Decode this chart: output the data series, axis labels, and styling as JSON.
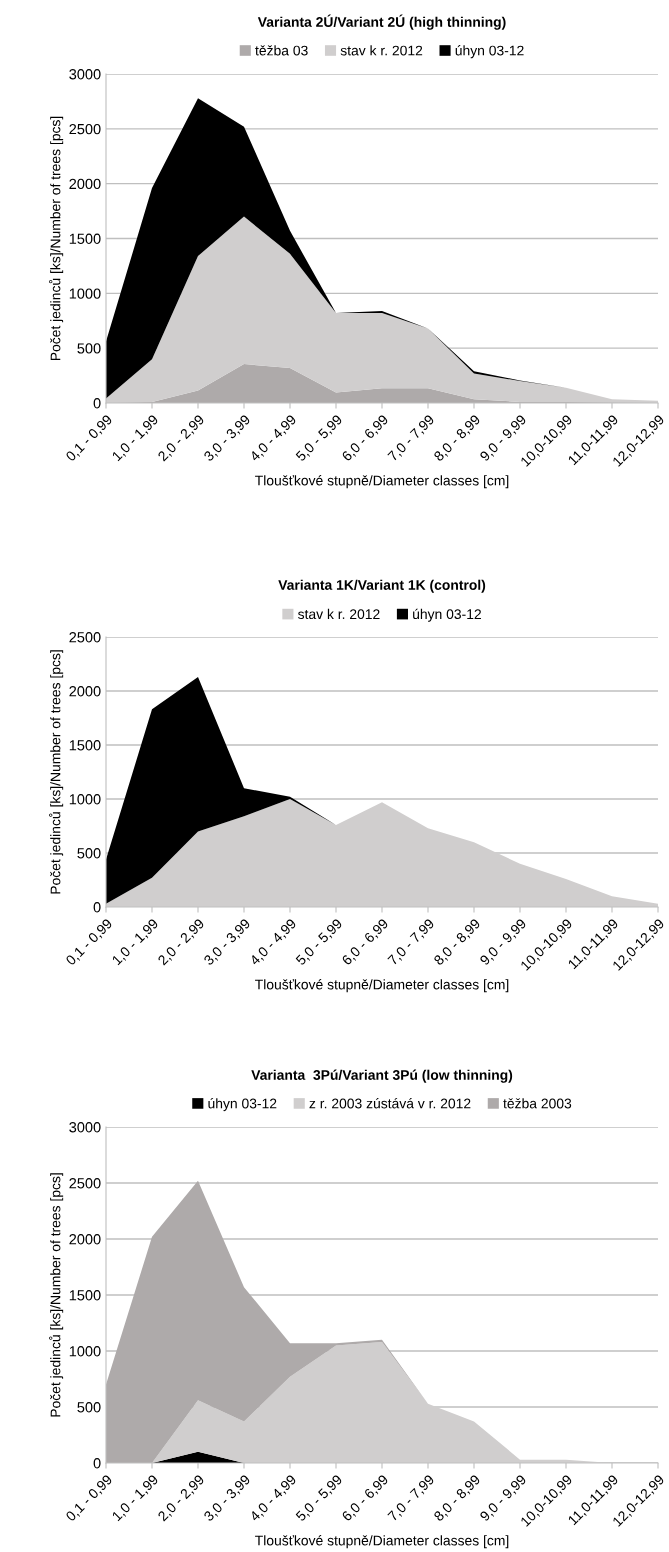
{
  "chart_data": [
    {
      "type": "area",
      "stacked": true,
      "title": "Varianta 2Ú/Variant 2Ú (high thinning)",
      "xlabel": "Tloušťkové stupně/Diameter classes [cm]",
      "ylabel": "Počet jedinců [ks]/Number of trees [pcs]",
      "categories": [
        "0,1 - 0,99",
        "1,0 - 1,99",
        "2,0 - 2,99",
        "3,0 - 3,99",
        "4,0 - 4,99",
        "5,0 - 5,99",
        "6,0 - 6,99",
        "7,0 - 7,99",
        "8,0 - 8,99",
        "9,0 - 9,99",
        "10,0-10,99",
        "11,0-11,99",
        "12,0-12,99"
      ],
      "series": [
        {
          "name": "těžba 03",
          "color": "#aeaaaa",
          "values": [
            0,
            10,
            115,
            355,
            320,
            95,
            135,
            135,
            35,
            10,
            10,
            5,
            0
          ]
        },
        {
          "name": "stav k r. 2012",
          "color": "#d0cece",
          "values": [
            40,
            390,
            1225,
            1345,
            1040,
            725,
            685,
            545,
            235,
            190,
            130,
            30,
            20
          ]
        },
        {
          "name": "úhyn 03-12",
          "color": "#000000",
          "values": [
            520,
            1560,
            1440,
            820,
            210,
            0,
            20,
            0,
            20,
            5,
            0,
            0,
            0
          ]
        }
      ],
      "ylim": [
        0,
        3000
      ],
      "yticks": [
        0,
        500,
        1000,
        1500,
        2000,
        2500,
        3000
      ],
      "grid": "y",
      "legend": "top"
    },
    {
      "type": "area",
      "stacked": true,
      "title": "Varianta 1K/Variant 1K (control)",
      "xlabel": "Tloušťkové stupně/Diameter classes [cm]",
      "ylabel": "Počet jedinců [ks]/Number of trees [pcs]",
      "categories": [
        "0,1 - 0,99",
        "1,0 - 1,99",
        "2,0 - 2,99",
        "3,0 - 3,99",
        "4,0 - 4,99",
        "5,0 - 5,99",
        "6,0 - 6,99",
        "7,0 - 7,99",
        "8,0 - 8,99",
        "9,0 - 9,99",
        "10,0-10,99",
        "11,0-11,99",
        "12,0-12,99"
      ],
      "series": [
        {
          "name": "stav k r. 2012",
          "color": "#d0cece",
          "values": [
            30,
            270,
            700,
            840,
            1000,
            760,
            970,
            730,
            600,
            400,
            260,
            100,
            30
          ]
        },
        {
          "name": "úhyn 03-12",
          "color": "#000000",
          "values": [
            410,
            1560,
            1430,
            260,
            20,
            0,
            0,
            0,
            0,
            0,
            0,
            0,
            0
          ]
        }
      ],
      "ylim": [
        0,
        2500
      ],
      "yticks": [
        0,
        500,
        1000,
        1500,
        2000,
        2500
      ],
      "grid": "y",
      "legend": "top"
    },
    {
      "type": "area",
      "stacked": true,
      "title": "Varianta  3Pú/Variant 3Pú (low thinning)",
      "xlabel": "Tloušťkové stupně/Diameter classes [cm]",
      "ylabel": "Počet jedinců [ks]/Number of trees [pcs]",
      "categories": [
        "0,1 - 0,99",
        "1,0 - 1,99",
        "2,0 - 2,99",
        "3,0 - 3,99",
        "4,0 - 4,99",
        "5,0 - 5,99",
        "6,0 - 6,99",
        "7,0 - 7,99",
        "8,0 - 8,99",
        "9,0 - 9,99",
        "10,0-10,99",
        "11,0-11,99",
        "12,0-12,99"
      ],
      "series": [
        {
          "name": "úhyn 03-12",
          "color": "#000000",
          "values": [
            0,
            0,
            100,
            0,
            0,
            0,
            0,
            0,
            0,
            0,
            0,
            0,
            0
          ]
        },
        {
          "name": "z r. 2003 zústává v r. 2012",
          "color": "#d0cece",
          "values": [
            0,
            0,
            460,
            370,
            770,
            1050,
            1080,
            530,
            370,
            30,
            30,
            0,
            0
          ]
        },
        {
          "name": "těžba 2003",
          "color": "#aeaaaa",
          "values": [
            700,
            2020,
            1960,
            1200,
            300,
            20,
            20,
            0,
            0,
            0,
            0,
            0,
            0
          ]
        }
      ],
      "ylim": [
        0,
        3000
      ],
      "yticks": [
        0,
        500,
        1000,
        1500,
        2000,
        2500,
        3000
      ],
      "grid": "y",
      "legend": "top"
    }
  ]
}
